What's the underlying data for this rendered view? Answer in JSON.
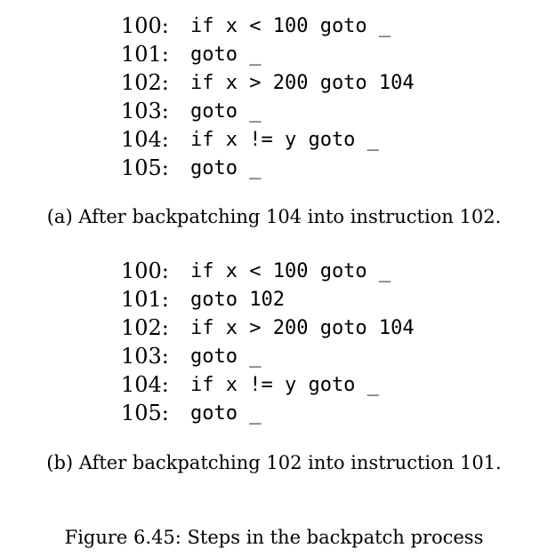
{
  "listing_a": {
    "lines": [
      {
        "num": "100:",
        "code": "if x < 100 goto _"
      },
      {
        "num": "101:",
        "code": "goto _"
      },
      {
        "num": "102:",
        "code": "if x > 200 goto 104"
      },
      {
        "num": "103:",
        "code": "goto _"
      },
      {
        "num": "104:",
        "code": "if x != y goto _"
      },
      {
        "num": "105:",
        "code": "goto _"
      }
    ],
    "caption": "(a) After backpatching 104 into instruction 102."
  },
  "listing_b": {
    "lines": [
      {
        "num": "100:",
        "code": "if x < 100 goto _"
      },
      {
        "num": "101:",
        "code": "goto 102"
      },
      {
        "num": "102:",
        "code": "if x > 200 goto 104"
      },
      {
        "num": "103:",
        "code": "goto _"
      },
      {
        "num": "104:",
        "code": "if x != y goto _"
      },
      {
        "num": "105:",
        "code": "goto _"
      }
    ],
    "caption": "(b) After backpatching 102 into instruction 101."
  },
  "figure_caption": "Figure 6.45: Steps in the backpatch process"
}
